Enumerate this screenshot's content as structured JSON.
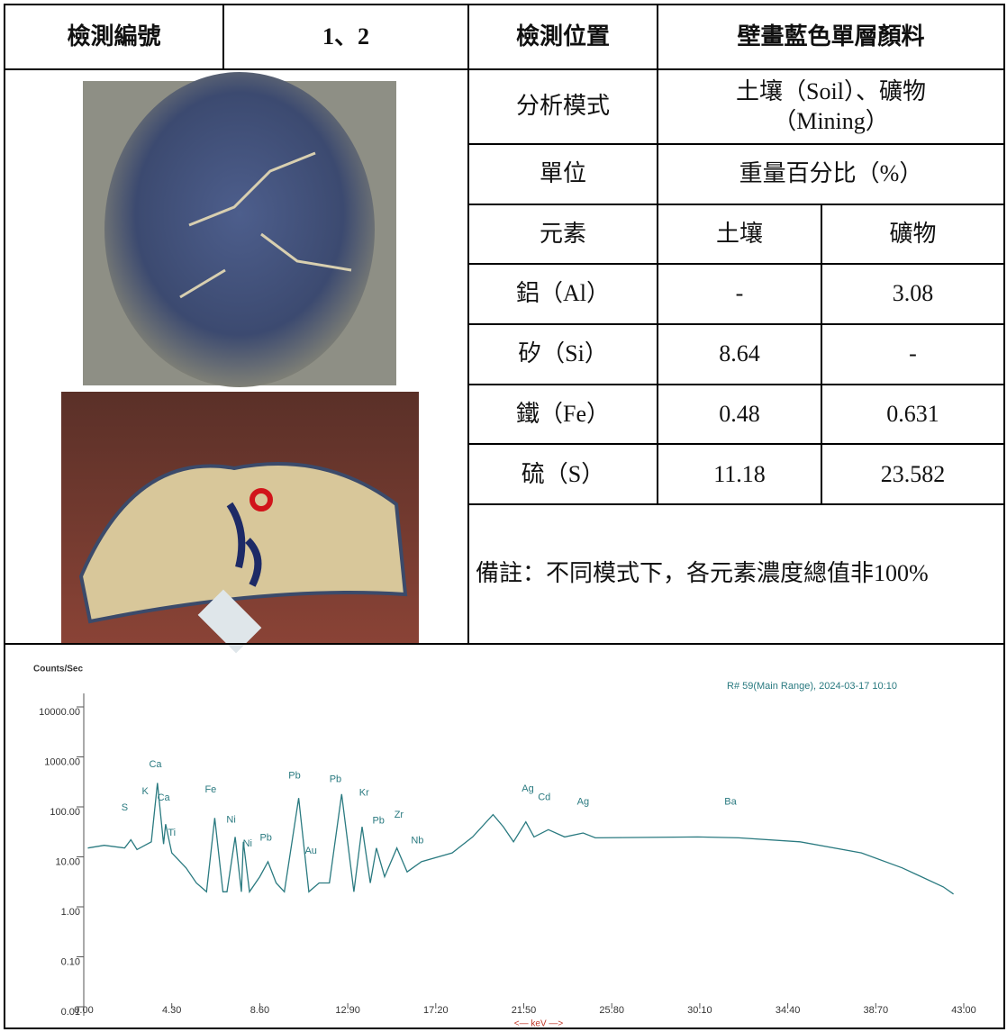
{
  "header": {
    "id_label": "檢測編號",
    "id_value": "1、2",
    "location_label": "檢測位置",
    "location_value": "壁畫藍色單層顏料"
  },
  "analysis": {
    "mode_label": "分析模式",
    "mode_value": "土壤（Soil）、礦物（Mining）",
    "unit_label": "單位",
    "unit_value": "重量百分比（%）"
  },
  "table": {
    "columns": [
      "元素",
      "土壤",
      "礦物"
    ],
    "rows": [
      [
        "鋁（Al）",
        "-",
        "3.08"
      ],
      [
        "矽（Si）",
        "8.64",
        "-"
      ],
      [
        "鐵（Fe）",
        "0.48",
        "0.631"
      ],
      [
        "硫（S）",
        "11.18",
        "23.582"
      ]
    ]
  },
  "note": "備註：不同模式下，各元素濃度總值非100%",
  "chart_data": {
    "type": "line",
    "ylabel": "Counts/Sec",
    "subtitle": "R# 59(Main Range), 2024-03-17 10:10",
    "xlabel": "<— keV —>",
    "ylog": true,
    "x": [
      0.2,
      1.0,
      2.0,
      2.3,
      2.6,
      3.3,
      3.6,
      3.9,
      4.0,
      4.3,
      5.0,
      5.5,
      6.0,
      6.4,
      6.8,
      7.0,
      7.4,
      7.7,
      7.8,
      8.1,
      8.6,
      9.0,
      9.4,
      9.8,
      10.5,
      11.0,
      11.5,
      12.0,
      12.6,
      13.2,
      13.6,
      14.0,
      14.3,
      14.7,
      15.3,
      15.8,
      16.5,
      18,
      19,
      20,
      20.5,
      21,
      21.6,
      22,
      22.7,
      23.5,
      24.4,
      25,
      30,
      32,
      35,
      38,
      40,
      42,
      42.5
    ],
    "series": [
      {
        "name": "Spectrum",
        "color": "#2a7a80",
        "values": [
          15,
          17,
          15,
          22,
          14,
          20,
          300,
          18,
          45,
          12,
          6,
          3,
          2,
          60,
          2,
          2,
          25,
          2,
          20,
          2,
          4,
          8,
          3,
          2,
          150,
          2,
          3,
          3,
          180,
          2,
          40,
          3,
          15,
          4,
          15,
          5,
          8,
          12,
          25,
          70,
          40,
          20,
          50,
          25,
          35,
          25,
          30,
          24,
          25,
          24,
          20,
          12,
          6,
          2.5,
          1.8
        ]
      }
    ],
    "xlim": [
      0,
      43
    ],
    "ylim": [
      0.01,
      10000
    ],
    "xticks": [
      {
        "value": 0,
        "label": "0.00"
      },
      {
        "value": 4.3,
        "label": "4.30"
      },
      {
        "value": 8.6,
        "label": "8.60"
      },
      {
        "value": 12.9,
        "label": "12.90"
      },
      {
        "value": 17.2,
        "label": "17.20"
      },
      {
        "value": 21.5,
        "label": "21.50"
      },
      {
        "value": 25.8,
        "label": "25.80"
      },
      {
        "value": 30.1,
        "label": "30.10"
      },
      {
        "value": 34.4,
        "label": "34.40"
      },
      {
        "value": 38.7,
        "label": "38.70"
      },
      {
        "value": 43,
        "label": "43.00"
      }
    ],
    "yticks": [
      {
        "value": 0.01,
        "label": "0.01"
      },
      {
        "value": 0.1,
        "label": "0.10"
      },
      {
        "value": 1,
        "label": "1.00"
      },
      {
        "value": 10,
        "label": "10.00"
      },
      {
        "value": 100,
        "label": "100.00"
      },
      {
        "value": 1000,
        "label": "1000.00"
      },
      {
        "value": 10000,
        "label": "10000.00"
      }
    ],
    "annotations": [
      {
        "text": "Ca",
        "x": 3.5,
        "y": 700
      },
      {
        "text": "S",
        "x": 2.0,
        "y": 95
      },
      {
        "text": "K",
        "x": 3.0,
        "y": 200
      },
      {
        "text": "Ca",
        "x": 3.9,
        "y": 150
      },
      {
        "text": "Ti",
        "x": 4.3,
        "y": 30
      },
      {
        "text": "Fe",
        "x": 6.2,
        "y": 220
      },
      {
        "text": "Ni",
        "x": 7.2,
        "y": 55
      },
      {
        "text": "Ni",
        "x": 8.0,
        "y": 18
      },
      {
        "text": "Pb",
        "x": 8.9,
        "y": 24
      },
      {
        "text": "Pb",
        "x": 10.3,
        "y": 420
      },
      {
        "text": "Pb",
        "x": 12.3,
        "y": 350
      },
      {
        "text": "Au",
        "x": 11.1,
        "y": 13
      },
      {
        "text": "Kr",
        "x": 13.7,
        "y": 190
      },
      {
        "text": "Pb",
        "x": 14.4,
        "y": 52
      },
      {
        "text": "Zr",
        "x": 15.4,
        "y": 68
      },
      {
        "text": "Nb",
        "x": 16.3,
        "y": 21
      },
      {
        "text": "Ag",
        "x": 21.7,
        "y": 230
      },
      {
        "text": "Cd",
        "x": 22.5,
        "y": 155
      },
      {
        "text": "Ag",
        "x": 24.4,
        "y": 125
      },
      {
        "text": "Ba",
        "x": 31.6,
        "y": 125
      }
    ]
  }
}
